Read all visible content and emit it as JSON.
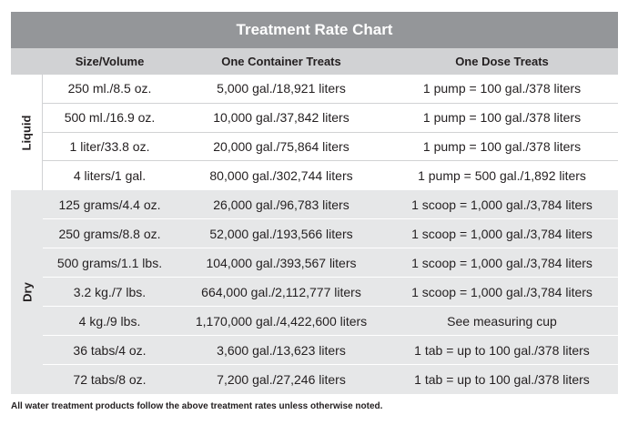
{
  "title": "Treatment Rate Chart",
  "headers": {
    "size": "Size/Volume",
    "container": "One Container Treats",
    "dose": "One Dose Treats"
  },
  "groups": [
    {
      "label": "Liquid",
      "rows": [
        {
          "size": "250 ml./8.5 oz.",
          "container": "5,000 gal./18,921 liters",
          "dose": "1 pump = 100 gal./378 liters"
        },
        {
          "size": "500 ml./16.9 oz.",
          "container": "10,000 gal./37,842 liters",
          "dose": "1 pump = 100 gal./378 liters"
        },
        {
          "size": "1 liter/33.8 oz.",
          "container": "20,000 gal./75,864 liters",
          "dose": "1 pump = 100 gal./378 liters"
        },
        {
          "size": "4 liters/1 gal.",
          "container": "80,000 gal./302,744 liters",
          "dose": "1 pump = 500 gal./1,892 liters"
        }
      ]
    },
    {
      "label": "Dry",
      "rows": [
        {
          "size": "125 grams/4.4 oz.",
          "container": "26,000 gal./96,783 liters",
          "dose": "1 scoop = 1,000 gal./3,784 liters"
        },
        {
          "size": "250 grams/8.8 oz.",
          "container": "52,000 gal./193,566 liters",
          "dose": "1 scoop = 1,000 gal./3,784 liters"
        },
        {
          "size": "500 grams/1.1 lbs.",
          "container": "104,000 gal./393,567 liters",
          "dose": "1 scoop = 1,000 gal./3,784 liters"
        },
        {
          "size": "3.2 kg./7 lbs.",
          "container": "664,000 gal./2,112,777 liters",
          "dose": "1 scoop = 1,000 gal./3,784 liters"
        },
        {
          "size": "4 kg./9 lbs.",
          "container": "1,170,000 gal./4,422,600 liters",
          "dose": "See measuring cup"
        },
        {
          "size": "36 tabs/4 oz.",
          "container": "3,600 gal./13,623 liters",
          "dose": "1 tab = up to 100 gal./378 liters"
        },
        {
          "size": "72 tabs/8 oz.",
          "container": "7,200 gal./27,246 liters",
          "dose": "1 tab = up to 100 gal./378 liters"
        }
      ]
    }
  ],
  "footnote": "All water treatment products follow the above treatment rates unless otherwise noted."
}
